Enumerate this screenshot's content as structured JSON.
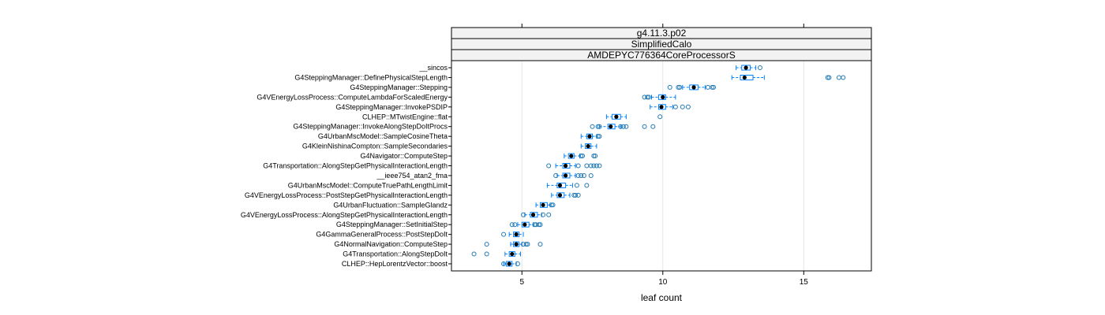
{
  "chart_data": {
    "type": "box",
    "orientation": "horizontal",
    "strips": [
      "g4.11.3.p02",
      "SimplifiedCalo",
      "AMDEPYC776364CoreProcessorS"
    ],
    "xlabel": "leaf count",
    "xlim": [
      2.5,
      17.4
    ],
    "xticks": [
      5,
      10,
      15
    ],
    "grid": "vertical",
    "colors": {
      "box": "#0080ff",
      "outlier": "#1f78b4",
      "median": "#000000",
      "strip_bg": "#f2f2f2",
      "grid": "#e6e6e6"
    },
    "categories": [
      {
        "label": "__sincos",
        "q1": 12.8,
        "med": 12.95,
        "q3": 13.1,
        "wlo": 12.6,
        "whi": 13.3,
        "out": [
          13.45
        ]
      },
      {
        "label": "G4SteppingManager::DefinePhysicalStepLength",
        "q1": 12.75,
        "med": 12.9,
        "q3": 13.2,
        "wlo": 12.45,
        "whi": 13.6,
        "out": [
          15.85,
          15.9,
          16.25,
          16.4
        ]
      },
      {
        "label": "G4SteppingManager::Stepping",
        "q1": 10.95,
        "med": 11.1,
        "q3": 11.25,
        "wlo": 10.7,
        "whi": 11.5,
        "out": [
          10.25,
          10.55,
          10.6,
          11.6,
          11.75,
          11.8
        ]
      },
      {
        "label": "G4VEnergyLossProcess::ComputeLambdaForScaledEnergy",
        "q1": 9.85,
        "med": 10.0,
        "q3": 10.1,
        "wlo": 9.6,
        "whi": 10.45,
        "out": [
          9.35,
          9.45,
          9.5
        ]
      },
      {
        "label": "G4SteppingManager::InvokePSDIP",
        "q1": 9.85,
        "med": 9.95,
        "q3": 10.1,
        "wlo": 9.55,
        "whi": 10.35,
        "out": [
          10.45,
          10.7,
          10.9
        ]
      },
      {
        "label": "CLHEP::MTwistEngine::flat",
        "q1": 8.2,
        "med": 8.35,
        "q3": 8.5,
        "wlo": 8.0,
        "whi": 8.7,
        "out": [
          9.9
        ]
      },
      {
        "label": "G4SteppingManager::InvokeAlongStepDoItProcs",
        "q1": 8.05,
        "med": 8.15,
        "q3": 8.3,
        "wlo": 7.75,
        "whi": 8.5,
        "out": [
          7.5,
          7.7,
          7.75,
          8.5,
          8.6,
          8.7,
          9.35,
          9.65
        ]
      },
      {
        "label": "G4UrbanMscModel::SampleCosineTheta",
        "q1": 7.3,
        "med": 7.4,
        "q3": 7.5,
        "wlo": 7.1,
        "whi": 7.65,
        "out": [
          7.7,
          7.75
        ]
      },
      {
        "label": "G4KleinNishinaCompton::SampleSecondaries",
        "q1": 7.25,
        "med": 7.35,
        "q3": 7.45,
        "wlo": 7.1,
        "whi": 7.65,
        "out": []
      },
      {
        "label": "G4Navigator::ComputeStep",
        "q1": 6.65,
        "med": 6.75,
        "q3": 6.85,
        "wlo": 6.5,
        "whi": 7.05,
        "out": [
          7.1,
          7.15,
          7.55,
          7.6
        ]
      },
      {
        "label": "G4Transportation::AlongStepGetPhysicalInteractionLength",
        "q1": 6.45,
        "med": 6.55,
        "q3": 6.7,
        "wlo": 6.2,
        "whi": 6.9,
        "out": [
          5.95,
          7.0,
          7.3,
          7.45,
          7.55,
          7.65,
          7.75
        ]
      },
      {
        "label": "__ieee754_atan2_fma",
        "q1": 6.45,
        "med": 6.55,
        "q3": 6.7,
        "wlo": 6.25,
        "whi": 6.9,
        "out": [
          6.2,
          7.0,
          7.1,
          7.2,
          7.45
        ]
      },
      {
        "label": "G4UrbanMscModel::ComputeTruePathLengthLimit",
        "q1": 6.25,
        "med": 6.35,
        "q3": 6.55,
        "wlo": 5.9,
        "whi": 6.8,
        "out": [
          6.95,
          7.3
        ]
      },
      {
        "label": "G4VEnergyLossProcess::PostStepGetPhysicalInteractionLength",
        "q1": 6.25,
        "med": 6.35,
        "q3": 6.5,
        "wlo": 6.05,
        "whi": 6.7,
        "out": [
          6.85,
          6.9,
          7.0
        ]
      },
      {
        "label": "G4UrbanFluctuation::SampleGlandz",
        "q1": 5.65,
        "med": 5.75,
        "q3": 5.9,
        "wlo": 5.5,
        "whi": 6.0,
        "out": [
          6.05,
          6.1
        ]
      },
      {
        "label": "G4VEnergyLossProcess::AlongStepGetPhysicalInteractionLength",
        "q1": 5.3,
        "med": 5.4,
        "q3": 5.55,
        "wlo": 5.1,
        "whi": 5.7,
        "out": [
          5.05,
          5.75,
          5.95
        ]
      },
      {
        "label": "G4SteppingManager::SetInitialStep",
        "q1": 5.0,
        "med": 5.1,
        "q3": 5.25,
        "wlo": 4.85,
        "whi": 5.4,
        "out": [
          4.65,
          4.75,
          5.45,
          5.5,
          5.6,
          5.65
        ]
      },
      {
        "label": "G4GammaGeneralProcess::PostStepDoIt",
        "q1": 4.7,
        "med": 4.8,
        "q3": 4.9,
        "wlo": 4.55,
        "whi": 5.05,
        "out": [
          4.35
        ]
      },
      {
        "label": "G4NormalNavigation::ComputeStep",
        "q1": 4.7,
        "med": 4.8,
        "q3": 4.9,
        "wlo": 4.6,
        "whi": 5.0,
        "out": [
          3.75,
          5.05,
          5.15,
          5.2,
          5.65
        ]
      },
      {
        "label": "G4Transportation::AlongStepDoIt",
        "q1": 4.55,
        "med": 4.65,
        "q3": 4.75,
        "wlo": 4.4,
        "whi": 4.95,
        "out": [
          3.3,
          3.75
        ]
      },
      {
        "label": "CLHEP::HepLorentzVector::boost",
        "q1": 4.45,
        "med": 4.55,
        "q3": 4.65,
        "wlo": 4.35,
        "whi": 4.8,
        "out": [
          4.35,
          4.85
        ]
      }
    ]
  }
}
